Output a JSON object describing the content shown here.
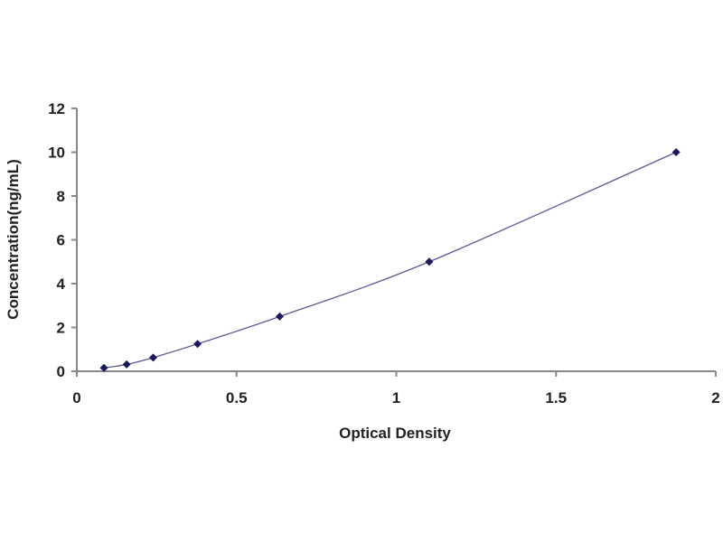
{
  "chart_data": {
    "type": "scatter",
    "title": "",
    "xlabel": "Optical Density",
    "ylabel": "Concentration(ng/mL)",
    "xlim": [
      0,
      2
    ],
    "ylim": [
      0,
      12
    ],
    "xticks": [
      "0",
      "0.5",
      "1",
      "1.5",
      "2"
    ],
    "yticks": [
      "0",
      "2",
      "4",
      "6",
      "8",
      "10",
      "12"
    ],
    "grid": false,
    "legend": "none",
    "series": [
      {
        "x": [
          0.085,
          0.156,
          0.239,
          0.378,
          0.635,
          1.103,
          1.876
        ],
        "y": [
          0.156,
          0.312,
          0.625,
          1.25,
          2.5,
          5,
          10
        ],
        "marker": "diamond",
        "trendline": "smooth curve"
      }
    ],
    "colors": {
      "line": "#5a5a9a",
      "marker": "#1a1a5a",
      "axis": "#888888"
    }
  }
}
